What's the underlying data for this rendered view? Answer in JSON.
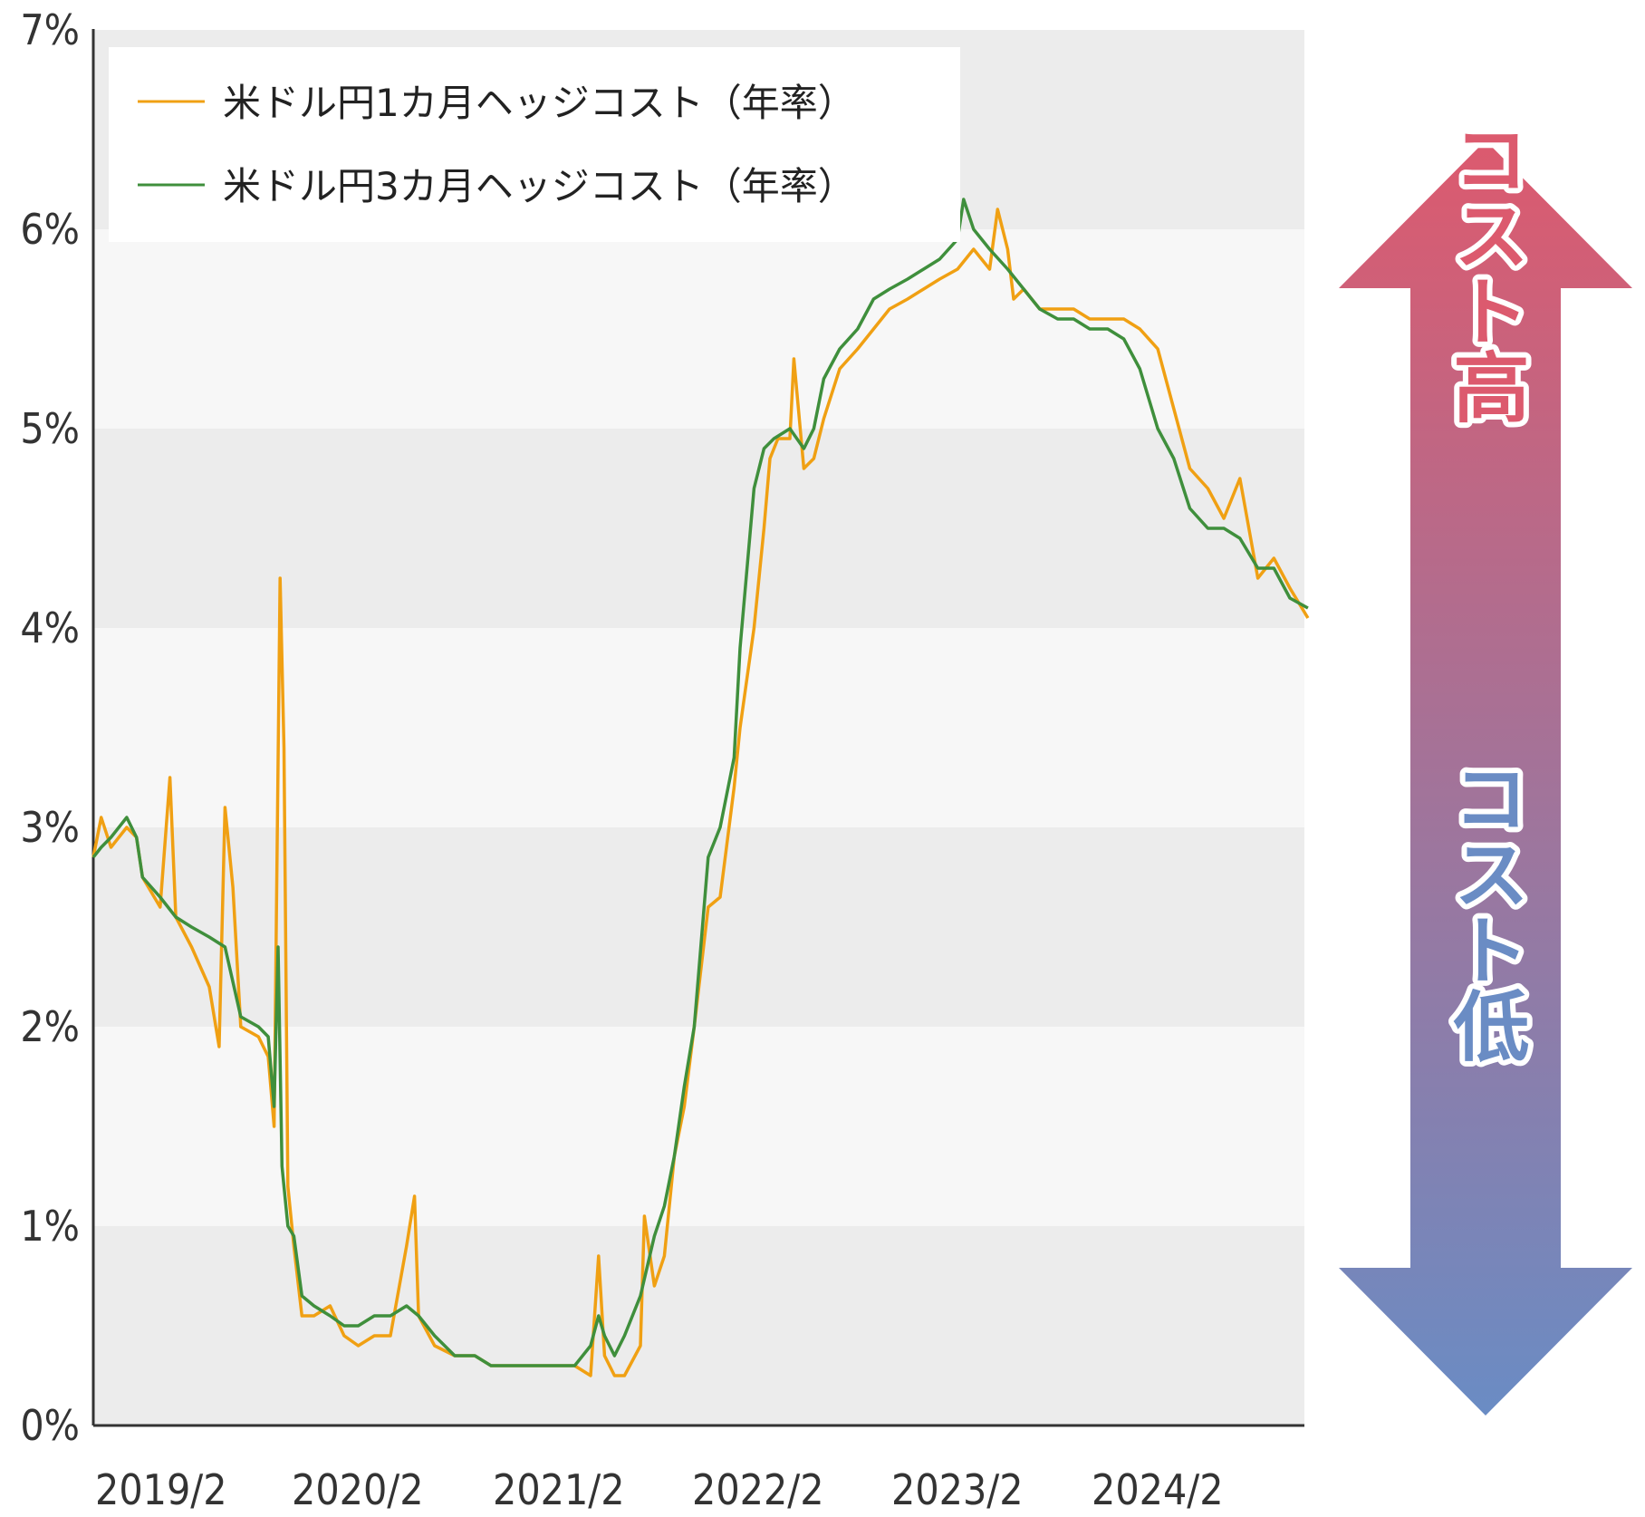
{
  "chart_data": {
    "type": "line",
    "x_ticks": [
      "2019/2",
      "2020/2",
      "2021/2",
      "2022/2",
      "2023/2",
      "2024/2"
    ],
    "y_ticks": [
      "0%",
      "1%",
      "2%",
      "3%",
      "4%",
      "5%",
      "6%",
      "7%"
    ],
    "ylim": [
      0,
      7
    ],
    "xlim": [
      2019.08,
      2025.17
    ],
    "grid": "alternating horizontal bands",
    "legend_position": "top-left",
    "series": [
      {
        "name": "米ドル円1カ月ヘッジコスト（年率）",
        "color": "#f0a013",
        "points": [
          [
            2019.08,
            2.85
          ],
          [
            2019.12,
            3.05
          ],
          [
            2019.17,
            2.9
          ],
          [
            2019.25,
            3.0
          ],
          [
            2019.3,
            2.95
          ],
          [
            2019.33,
            2.75
          ],
          [
            2019.42,
            2.6
          ],
          [
            2019.47,
            3.25
          ],
          [
            2019.5,
            2.55
          ],
          [
            2019.58,
            2.4
          ],
          [
            2019.67,
            2.2
          ],
          [
            2019.72,
            1.9
          ],
          [
            2019.75,
            3.1
          ],
          [
            2019.79,
            2.7
          ],
          [
            2019.83,
            2.0
          ],
          [
            2019.92,
            1.95
          ],
          [
            2019.97,
            1.85
          ],
          [
            2020.0,
            1.5
          ],
          [
            2020.03,
            4.25
          ],
          [
            2020.05,
            3.4
          ],
          [
            2020.07,
            1.2
          ],
          [
            2020.1,
            0.9
          ],
          [
            2020.14,
            0.55
          ],
          [
            2020.2,
            0.55
          ],
          [
            2020.28,
            0.6
          ],
          [
            2020.35,
            0.45
          ],
          [
            2020.42,
            0.4
          ],
          [
            2020.5,
            0.45
          ],
          [
            2020.58,
            0.45
          ],
          [
            2020.66,
            0.9
          ],
          [
            2020.7,
            1.15
          ],
          [
            2020.72,
            0.55
          ],
          [
            2020.8,
            0.4
          ],
          [
            2020.9,
            0.35
          ],
          [
            2021.0,
            0.35
          ],
          [
            2021.08,
            0.3
          ],
          [
            2021.17,
            0.3
          ],
          [
            2021.25,
            0.3
          ],
          [
            2021.33,
            0.3
          ],
          [
            2021.42,
            0.3
          ],
          [
            2021.5,
            0.3
          ],
          [
            2021.58,
            0.25
          ],
          [
            2021.62,
            0.85
          ],
          [
            2021.65,
            0.35
          ],
          [
            2021.7,
            0.25
          ],
          [
            2021.75,
            0.25
          ],
          [
            2021.83,
            0.4
          ],
          [
            2021.85,
            1.05
          ],
          [
            2021.9,
            0.7
          ],
          [
            2021.95,
            0.85
          ],
          [
            2022.0,
            1.35
          ],
          [
            2022.05,
            1.6
          ],
          [
            2022.1,
            2.0
          ],
          [
            2022.17,
            2.6
          ],
          [
            2022.23,
            2.65
          ],
          [
            2022.3,
            3.2
          ],
          [
            2022.33,
            3.5
          ],
          [
            2022.4,
            4.0
          ],
          [
            2022.45,
            4.5
          ],
          [
            2022.48,
            4.85
          ],
          [
            2022.52,
            4.95
          ],
          [
            2022.58,
            4.95
          ],
          [
            2022.6,
            5.35
          ],
          [
            2022.65,
            4.8
          ],
          [
            2022.7,
            4.85
          ],
          [
            2022.75,
            5.05
          ],
          [
            2022.83,
            5.3
          ],
          [
            2022.92,
            5.4
          ],
          [
            2023.0,
            5.5
          ],
          [
            2023.08,
            5.6
          ],
          [
            2023.17,
            5.65
          ],
          [
            2023.25,
            5.7
          ],
          [
            2023.33,
            5.75
          ],
          [
            2023.42,
            5.8
          ],
          [
            2023.5,
            5.9
          ],
          [
            2023.58,
            5.8
          ],
          [
            2023.62,
            6.1
          ],
          [
            2023.67,
            5.9
          ],
          [
            2023.7,
            5.65
          ],
          [
            2023.75,
            5.7
          ],
          [
            2023.83,
            5.6
          ],
          [
            2023.92,
            5.6
          ],
          [
            2024.0,
            5.6
          ],
          [
            2024.08,
            5.55
          ],
          [
            2024.17,
            5.55
          ],
          [
            2024.25,
            5.55
          ],
          [
            2024.33,
            5.5
          ],
          [
            2024.42,
            5.4
          ],
          [
            2024.5,
            5.1
          ],
          [
            2024.58,
            4.8
          ],
          [
            2024.67,
            4.7
          ],
          [
            2024.75,
            4.55
          ],
          [
            2024.83,
            4.75
          ],
          [
            2024.92,
            4.25
          ],
          [
            2025.0,
            4.35
          ],
          [
            2025.08,
            4.2
          ],
          [
            2025.17,
            4.05
          ]
        ]
      },
      {
        "name": "米ドル円3カ月ヘッジコスト（年率）",
        "color": "#3f8f3c",
        "points": [
          [
            2019.08,
            2.85
          ],
          [
            2019.12,
            2.9
          ],
          [
            2019.17,
            2.95
          ],
          [
            2019.25,
            3.05
          ],
          [
            2019.3,
            2.95
          ],
          [
            2019.33,
            2.75
          ],
          [
            2019.42,
            2.65
          ],
          [
            2019.5,
            2.55
          ],
          [
            2019.58,
            2.5
          ],
          [
            2019.67,
            2.45
          ],
          [
            2019.75,
            2.4
          ],
          [
            2019.83,
            2.05
          ],
          [
            2019.92,
            2.0
          ],
          [
            2019.97,
            1.95
          ],
          [
            2020.0,
            1.6
          ],
          [
            2020.02,
            2.4
          ],
          [
            2020.04,
            1.3
          ],
          [
            2020.07,
            1.0
          ],
          [
            2020.1,
            0.95
          ],
          [
            2020.14,
            0.65
          ],
          [
            2020.2,
            0.6
          ],
          [
            2020.28,
            0.55
          ],
          [
            2020.35,
            0.5
          ],
          [
            2020.42,
            0.5
          ],
          [
            2020.5,
            0.55
          ],
          [
            2020.58,
            0.55
          ],
          [
            2020.66,
            0.6
          ],
          [
            2020.72,
            0.55
          ],
          [
            2020.8,
            0.45
          ],
          [
            2020.9,
            0.35
          ],
          [
            2021.0,
            0.35
          ],
          [
            2021.08,
            0.3
          ],
          [
            2021.17,
            0.3
          ],
          [
            2021.25,
            0.3
          ],
          [
            2021.33,
            0.3
          ],
          [
            2021.42,
            0.3
          ],
          [
            2021.5,
            0.3
          ],
          [
            2021.58,
            0.4
          ],
          [
            2021.62,
            0.55
          ],
          [
            2021.65,
            0.45
          ],
          [
            2021.7,
            0.35
          ],
          [
            2021.75,
            0.45
          ],
          [
            2021.83,
            0.65
          ],
          [
            2021.9,
            0.95
          ],
          [
            2021.95,
            1.1
          ],
          [
            2022.0,
            1.35
          ],
          [
            2022.05,
            1.7
          ],
          [
            2022.1,
            2.0
          ],
          [
            2022.17,
            2.85
          ],
          [
            2022.23,
            3.0
          ],
          [
            2022.3,
            3.35
          ],
          [
            2022.33,
            3.9
          ],
          [
            2022.4,
            4.7
          ],
          [
            2022.45,
            4.9
          ],
          [
            2022.5,
            4.95
          ],
          [
            2022.58,
            5.0
          ],
          [
            2022.65,
            4.9
          ],
          [
            2022.7,
            5.0
          ],
          [
            2022.75,
            5.25
          ],
          [
            2022.83,
            5.4
          ],
          [
            2022.92,
            5.5
          ],
          [
            2023.0,
            5.65
          ],
          [
            2023.08,
            5.7
          ],
          [
            2023.17,
            5.75
          ],
          [
            2023.25,
            5.8
          ],
          [
            2023.33,
            5.85
          ],
          [
            2023.42,
            5.95
          ],
          [
            2023.45,
            6.15
          ],
          [
            2023.5,
            6.0
          ],
          [
            2023.58,
            5.9
          ],
          [
            2023.67,
            5.8
          ],
          [
            2023.75,
            5.7
          ],
          [
            2023.83,
            5.6
          ],
          [
            2023.92,
            5.55
          ],
          [
            2024.0,
            5.55
          ],
          [
            2024.08,
            5.5
          ],
          [
            2024.17,
            5.5
          ],
          [
            2024.25,
            5.45
          ],
          [
            2024.33,
            5.3
          ],
          [
            2024.42,
            5.0
          ],
          [
            2024.5,
            4.85
          ],
          [
            2024.58,
            4.6
          ],
          [
            2024.67,
            4.5
          ],
          [
            2024.75,
            4.5
          ],
          [
            2024.83,
            4.45
          ],
          [
            2024.92,
            4.3
          ],
          [
            2025.0,
            4.3
          ],
          [
            2025.08,
            4.15
          ],
          [
            2025.17,
            4.1
          ]
        ]
      }
    ]
  },
  "arrow": {
    "top_label": "コスト高",
    "bottom_label": "コスト低",
    "top_color": "#dc5a6e",
    "bottom_color": "#6a8cc4"
  }
}
